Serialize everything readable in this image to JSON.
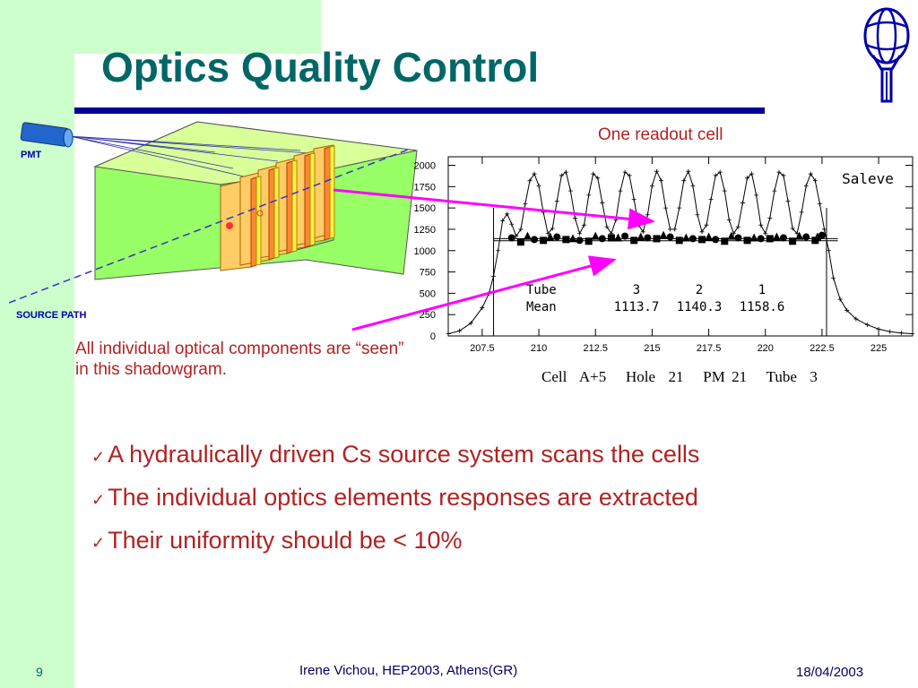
{
  "slide": {
    "title": "Optics Quality Control",
    "page_number": "9",
    "footer_author": "Irene Vichou, HEP2003, Athens(GR)",
    "footer_date": "18/04/2003"
  },
  "diagram": {
    "pmt_label": "PMT",
    "source_path_label": "SOURCE  PATH"
  },
  "annotations": {
    "readout_cell": "One readout cell",
    "components_caption": "All individual optical components are “seen” in this shadowgram."
  },
  "chart_caption": "Cell  A+5   Hole  21   PM 21   Tube  3",
  "bullets": [
    "A hydraulically driven Cs source system scans the cells",
    "The individual optics elements responses are extracted",
    "Their uniformity should be < 10%"
  ],
  "colors": {
    "title": "#006666",
    "bullet_text": "#b22222",
    "sidebar": "#ccffcc",
    "rule": "#000099",
    "arrow": "#ff00ff"
  },
  "chart_data": {
    "type": "line",
    "title": "Saleve",
    "xlim": [
      206,
      226.5
    ],
    "ylim": [
      0,
      2100
    ],
    "x_ticks": [
      207.5,
      210,
      212.5,
      215,
      217.5,
      220,
      222.5,
      225
    ],
    "x_tick_labels": [
      "207.5",
      "210",
      "212.5",
      "215",
      "217.5",
      "220",
      "222.5",
      "225"
    ],
    "y_ticks": [
      0,
      250,
      500,
      750,
      1000,
      1250,
      1500,
      1750,
      2000
    ],
    "y_tick_labels": [
      "0",
      "250",
      "500",
      "750",
      "1000",
      "1250",
      "1500",
      "1750",
      "2000"
    ],
    "cell_edges": [
      208,
      222.7
    ],
    "signal": {
      "x": [
        206.0,
        206.5,
        207.0,
        207.5,
        207.8,
        208.0,
        208.2,
        208.4,
        208.6,
        208.8,
        209.0,
        209.2,
        209.4,
        209.6,
        209.8,
        210.0,
        210.2,
        210.4,
        210.6,
        210.8,
        211.0,
        211.2,
        211.4,
        211.6,
        211.8,
        212.0,
        212.2,
        212.4,
        212.6,
        212.8,
        213.0,
        213.2,
        213.4,
        213.6,
        213.8,
        214.0,
        214.2,
        214.4,
        214.6,
        214.8,
        215.0,
        215.2,
        215.4,
        215.6,
        215.8,
        216.0,
        216.2,
        216.4,
        216.6,
        216.8,
        217.0,
        217.2,
        217.4,
        217.6,
        217.8,
        218.0,
        218.2,
        218.4,
        218.6,
        218.8,
        219.0,
        219.2,
        219.4,
        219.6,
        219.8,
        220.0,
        220.2,
        220.4,
        220.6,
        220.8,
        221.0,
        221.2,
        221.4,
        221.6,
        221.8,
        222.0,
        222.2,
        222.4,
        222.6,
        222.8,
        223.0,
        223.3,
        223.6,
        224.0,
        224.5,
        225.0,
        225.5,
        226.0,
        226.5
      ],
      "y": [
        25,
        60,
        150,
        330,
        500,
        700,
        1000,
        1350,
        1430,
        1310,
        1170,
        1250,
        1550,
        1820,
        1900,
        1760,
        1450,
        1200,
        1260,
        1580,
        1880,
        1920,
        1700,
        1380,
        1200,
        1300,
        1650,
        1900,
        1850,
        1560,
        1280,
        1200,
        1360,
        1700,
        1920,
        1880,
        1600,
        1300,
        1220,
        1420,
        1760,
        1930,
        1820,
        1500,
        1250,
        1250,
        1500,
        1820,
        1930,
        1760,
        1420,
        1220,
        1300,
        1600,
        1880,
        1920,
        1700,
        1360,
        1200,
        1280,
        1560,
        1850,
        1900,
        1650,
        1300,
        1200,
        1380,
        1700,
        1920,
        1880,
        1580,
        1260,
        1200,
        1450,
        1760,
        1900,
        1820,
        1550,
        1250,
        1000,
        680,
        430,
        300,
        200,
        130,
        80,
        50,
        35,
        25
      ]
    },
    "plateau_level": 1140,
    "tube_legend": {
      "header": "Tube",
      "row_label": "Mean",
      "tubes": [
        "3",
        "2",
        "1"
      ],
      "means": [
        "1113.7",
        "1140.3",
        "1158.6"
      ]
    },
    "tube_series": [
      {
        "tube": "3",
        "marker": "square",
        "x": [
          209.2,
          210.2,
          211.2,
          212.2,
          213.2,
          214.2,
          215.2,
          216.2,
          217.2,
          218.2,
          219.2,
          220.2,
          221.2,
          222.2
        ],
        "y": [
          1100,
          1120,
          1130,
          1110,
          1150,
          1120,
          1140,
          1120,
          1130,
          1110,
          1120,
          1140,
          1110,
          1120
        ]
      },
      {
        "tube": "2",
        "marker": "circle",
        "x": [
          208.8,
          209.8,
          210.8,
          211.8,
          212.8,
          213.8,
          214.8,
          215.8,
          216.8,
          217.8,
          218.8,
          219.8,
          220.8,
          221.8,
          222.5
        ],
        "y": [
          1150,
          1130,
          1160,
          1120,
          1140,
          1170,
          1150,
          1160,
          1140,
          1130,
          1150,
          1140,
          1150,
          1160,
          1180
        ]
      },
      {
        "tube": "1",
        "marker": "triangle",
        "x": [
          209.5,
          210.5,
          211.5,
          212.5,
          213.5,
          214.5,
          215.5,
          216.5,
          217.5,
          218.5,
          219.5,
          220.5,
          221.5,
          222.3
        ],
        "y": [
          1170,
          1160,
          1140,
          1170,
          1150,
          1160,
          1180,
          1150,
          1160,
          1170,
          1150,
          1160,
          1170,
          1160
        ]
      }
    ]
  }
}
